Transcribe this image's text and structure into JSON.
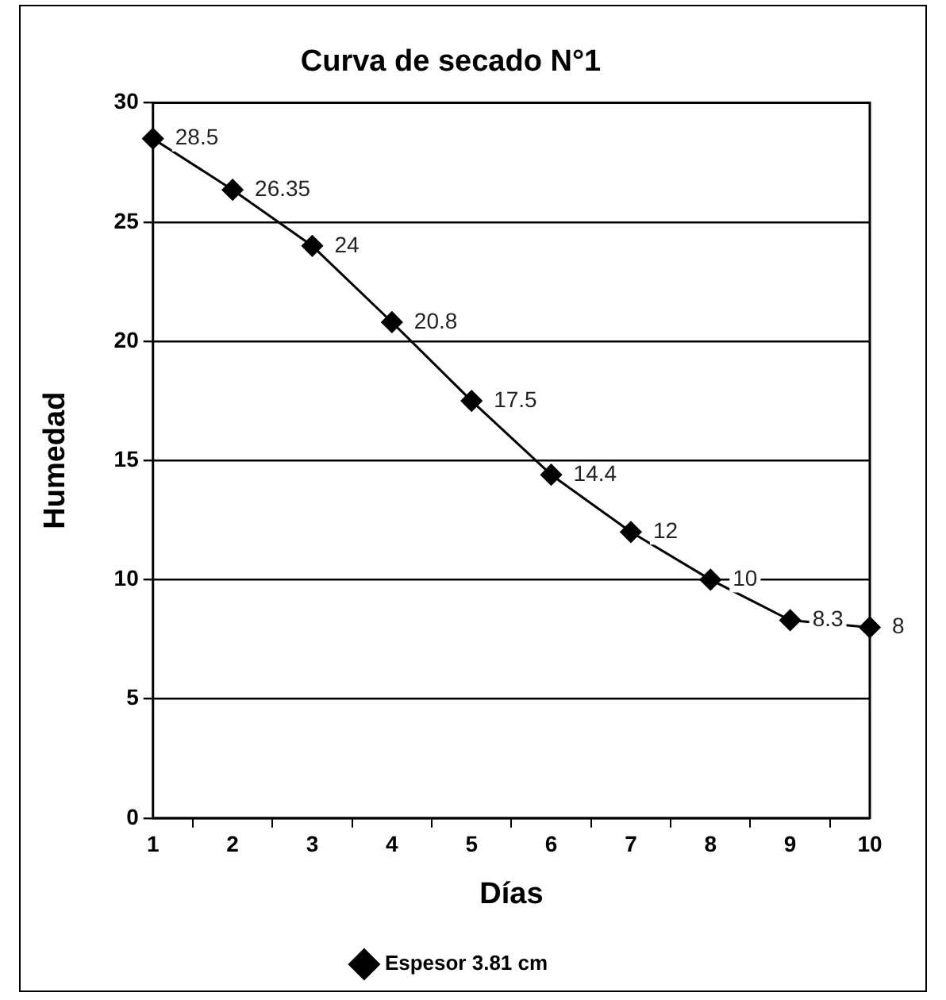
{
  "chart_data": {
    "type": "line",
    "title": "Curva de secado N°1",
    "xlabel": "Días",
    "ylabel": "Humedad",
    "categories": [
      "1",
      "2",
      "3",
      "4",
      "5",
      "6",
      "7",
      "8",
      "9",
      "10"
    ],
    "series": [
      {
        "name": "Espesor 3.81 cm",
        "color": "#000000",
        "values": [
          28.5,
          26.35,
          24,
          20.8,
          17.5,
          14.4,
          12,
          10,
          8.3,
          8
        ]
      }
    ],
    "ylim": [
      0,
      30
    ],
    "yticks": [
      0,
      5,
      10,
      15,
      20,
      25,
      30
    ],
    "grid": "y",
    "legend": "bottom",
    "marker": "diamond",
    "line_style": "solid",
    "data_labels": true
  }
}
